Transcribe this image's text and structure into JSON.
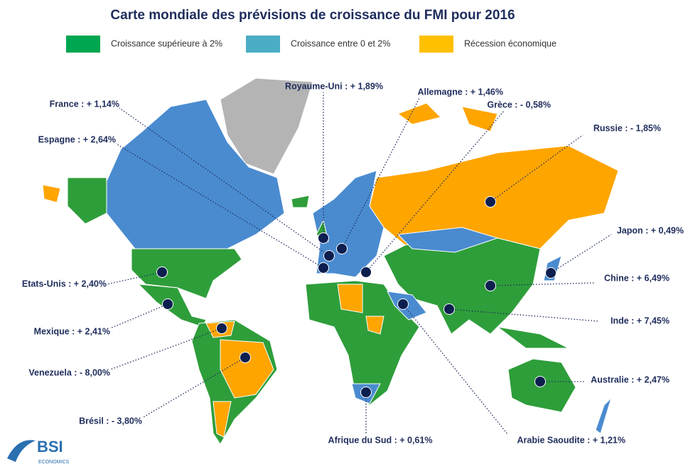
{
  "title": "Carte mondiale des prévisions de croissance du FMI pour 2016",
  "legend": [
    {
      "label": "Croissance supérieure à 2%",
      "color": "#00a650"
    },
    {
      "label": "Croissance entre 0 et 2%",
      "color": "#4bacc6"
    },
    {
      "label": "Récession économique",
      "color": "#ffc000"
    }
  ],
  "callouts": [
    {
      "label": "France : + 1,14%"
    },
    {
      "label": "Espagne : + 2,64%"
    },
    {
      "label": "Royaume-Uni : + 1,89%"
    },
    {
      "label": "Allemagne : + 1,46%"
    },
    {
      "label": "Grèce : - 0,58%"
    },
    {
      "label": "Russie : - 1,85%"
    },
    {
      "label": "Japon : + 0,49%"
    },
    {
      "label": "Chine : + 6,49%"
    },
    {
      "label": "Inde : + 7,45%"
    },
    {
      "label": "Australie : + 2,47%"
    },
    {
      "label": "Arabie Saoudite : + 1,21%"
    },
    {
      "label": "Afrique du Sud : + 0,61%"
    },
    {
      "label": "Brésil : - 3,80%"
    },
    {
      "label": "Venezuela : - 8,00%"
    },
    {
      "label": "Mexique : + 2,41%"
    },
    {
      "label": "Etats-Unis : + 2,40%"
    }
  ],
  "logo": {
    "name": "BSI",
    "tagline": "ECONOMICS"
  }
}
